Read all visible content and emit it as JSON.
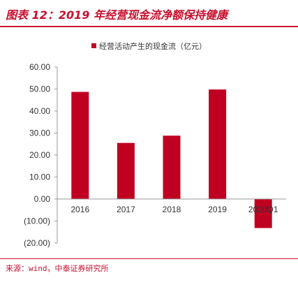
{
  "header": {
    "title": "图表 12：2019 年经营现金流净额保持健康"
  },
  "source": "来源：wind，中泰证券研究所",
  "colors": {
    "accent": "#c8102e",
    "bar": "#c00021",
    "axis": "#999999",
    "text": "#333333"
  },
  "chart_data": {
    "type": "bar",
    "categories": [
      "2016",
      "2017",
      "2018",
      "2019",
      "2020Q1"
    ],
    "series": [
      {
        "name": "经营活动产生的现金流（亿元）",
        "values": [
          48.7,
          25.5,
          28.8,
          49.8,
          -13.2
        ]
      }
    ],
    "ylim": [
      -20,
      60
    ],
    "yticks": [
      60,
      50,
      40,
      30,
      20,
      10,
      0,
      -10,
      -20
    ],
    "ytick_labels": [
      "60.00",
      "50.00",
      "40.00",
      "30.00",
      "20.00",
      "10.00",
      "0.00",
      "(10.00)",
      "(20.00)"
    ],
    "legend_position": "top-center",
    "grid": false
  }
}
